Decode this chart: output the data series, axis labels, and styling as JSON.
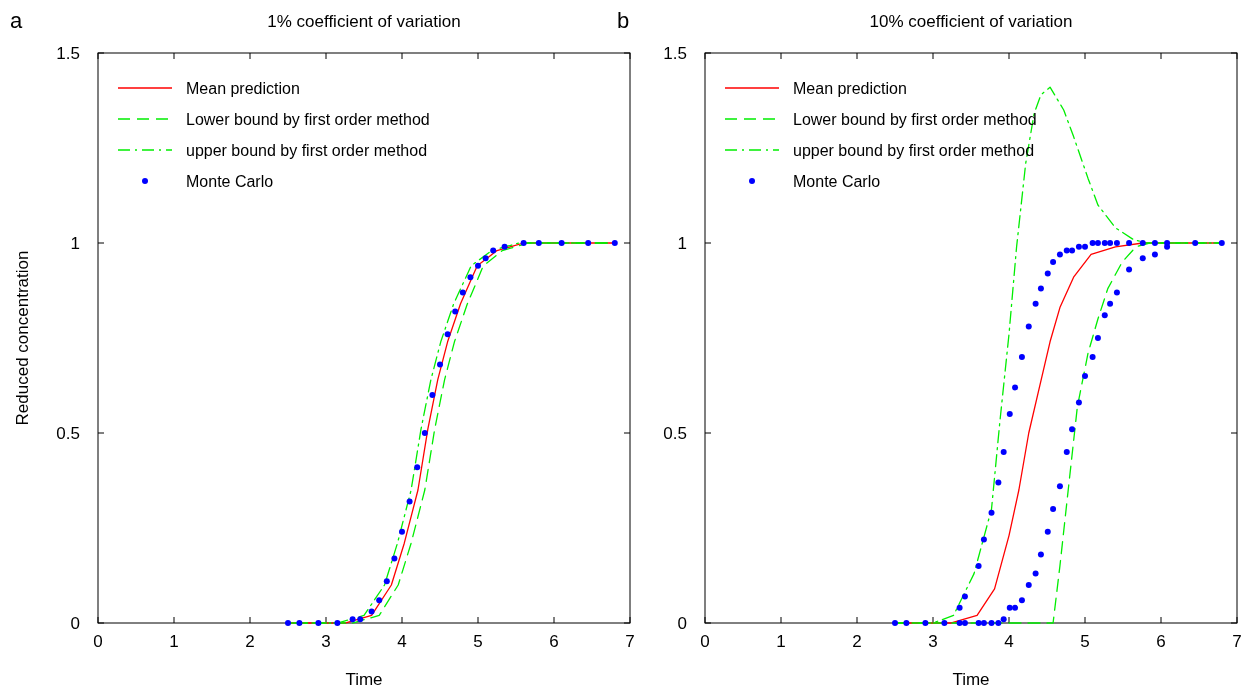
{
  "chart_data": [
    {
      "type": "line",
      "title": "1% coefficient of variation",
      "xlabel": "Time",
      "ylabel": "Reduced concentration",
      "annotations": [
        "a"
      ],
      "xlim": [
        0,
        7
      ],
      "ylim": [
        0,
        1.5
      ],
      "xticks": [
        0,
        1,
        2,
        3,
        4,
        5,
        6,
        7
      ],
      "yticks": [
        0,
        0.5,
        1,
        1.5
      ],
      "legend": "top left",
      "series": [
        {
          "name": "Mean prediction",
          "color": "#ff0000",
          "line_style": "solid",
          "x": [
            2.5,
            3.25,
            3.6,
            3.86,
            4.03,
            4.21,
            4.34,
            4.47,
            4.6,
            4.77,
            4.99,
            5.25,
            5.6,
            6.0,
            6.8
          ],
          "values": [
            0,
            0,
            0.02,
            0.1,
            0.21,
            0.35,
            0.51,
            0.64,
            0.74,
            0.84,
            0.94,
            0.98,
            1.0,
            1.0,
            1.0
          ]
        },
        {
          "name": "Lower bound by first order method",
          "color": "#00ee00",
          "line_style": "dashed",
          "x": [
            2.6,
            3.35,
            3.7,
            3.95,
            4.12,
            4.3,
            4.43,
            4.56,
            4.69,
            4.86,
            5.07,
            5.32,
            5.66,
            6.0,
            6.8
          ],
          "values": [
            0,
            0,
            0.02,
            0.1,
            0.21,
            0.35,
            0.51,
            0.64,
            0.74,
            0.84,
            0.94,
            0.98,
            1.0,
            1.0,
            1.0
          ]
        },
        {
          "name": "upper bound by first order method",
          "color": "#00ee00",
          "line_style": "dashdot",
          "x": [
            2.5,
            3.15,
            3.5,
            3.77,
            3.94,
            4.12,
            4.25,
            4.38,
            4.51,
            4.68,
            4.91,
            5.18,
            5.54,
            6.0,
            6.7
          ],
          "values": [
            0,
            0,
            0.02,
            0.1,
            0.21,
            0.35,
            0.51,
            0.64,
            0.74,
            0.84,
            0.94,
            0.98,
            1.0,
            1.0,
            1.0
          ]
        },
        {
          "name": "Monte Carlo",
          "type": "scatter",
          "marker": "circle",
          "color": "#0000ff",
          "x": [
            2.5,
            2.65,
            2.9,
            3.15,
            3.35,
            3.45,
            3.6,
            3.7,
            3.8,
            3.9,
            4.0,
            4.1,
            4.2,
            4.3,
            4.4,
            4.5,
            4.6,
            4.7,
            4.8,
            4.9,
            5.0,
            5.1,
            5.2,
            5.35,
            5.6,
            5.8,
            6.1,
            6.45,
            6.8
          ],
          "values": [
            0,
            0,
            0,
            0,
            0.01,
            0.01,
            0.03,
            0.06,
            0.11,
            0.17,
            0.24,
            0.32,
            0.41,
            0.5,
            0.6,
            0.68,
            0.76,
            0.82,
            0.87,
            0.91,
            0.94,
            0.96,
            0.98,
            0.99,
            1.0,
            1.0,
            1.0,
            1.0,
            1.0
          ]
        }
      ]
    },
    {
      "type": "line",
      "title": "10% coefficient of variation",
      "xlabel": "Time",
      "annotations": [
        "b"
      ],
      "xlim": [
        0,
        7
      ],
      "ylim": [
        0,
        1.5
      ],
      "xticks": [
        0,
        1,
        2,
        3,
        4,
        5,
        6,
        7
      ],
      "yticks": [
        0,
        0.5,
        1,
        1.5
      ],
      "legend": "top left",
      "series": [
        {
          "name": "Mean prediction",
          "color": "#ff0000",
          "line_style": "solid",
          "x": [
            2.5,
            3.23,
            3.58,
            3.81,
            4.0,
            4.13,
            4.26,
            4.4,
            4.54,
            4.67,
            4.85,
            5.08,
            5.4,
            5.76,
            6.8
          ],
          "values": [
            0,
            0,
            0.02,
            0.09,
            0.23,
            0.35,
            0.5,
            0.62,
            0.74,
            0.83,
            0.91,
            0.97,
            0.99,
            1.0,
            1.0
          ]
        },
        {
          "name": "Lower bound by first order method",
          "color": "#00ee00",
          "line_style": "dashed",
          "x": [
            2.5,
            4.58,
            4.67,
            4.79,
            4.9,
            5.04,
            5.17,
            5.3,
            5.49,
            5.67,
            5.85,
            6.8
          ],
          "values": [
            0,
            0,
            0.15,
            0.37,
            0.57,
            0.71,
            0.8,
            0.88,
            0.95,
            0.99,
            1.0,
            1.0
          ]
        },
        {
          "name": "upper bound by first order method",
          "color": "#00ee00",
          "line_style": "dashdot",
          "x": [
            2.5,
            3.0,
            3.27,
            3.54,
            3.77,
            3.88,
            4.0,
            4.1,
            4.22,
            4.33,
            4.42,
            4.54,
            4.72,
            4.85,
            5.04,
            5.17,
            5.4,
            5.63,
            5.8,
            6.8
          ],
          "values": [
            0,
            0,
            0.02,
            0.13,
            0.3,
            0.53,
            0.76,
            0.99,
            1.21,
            1.34,
            1.39,
            1.41,
            1.35,
            1.28,
            1.17,
            1.1,
            1.04,
            1.01,
            1.0,
            1.0
          ]
        },
        {
          "name": "Monte Carlo",
          "type": "scatter",
          "marker": "circle",
          "color": "#0000ff",
          "x": [
            2.5,
            2.65,
            2.9,
            3.15,
            3.35,
            3.35,
            3.42,
            3.42,
            3.6,
            3.6,
            3.67,
            3.67,
            3.77,
            3.77,
            3.86,
            3.86,
            3.93,
            3.93,
            4.01,
            4.01,
            4.08,
            4.08,
            4.17,
            4.17,
            4.26,
            4.26,
            4.35,
            4.35,
            4.42,
            4.42,
            4.51,
            4.51,
            4.58,
            4.58,
            4.67,
            4.67,
            4.76,
            4.76,
            4.83,
            4.83,
            4.92,
            4.92,
            5.0,
            5.0,
            5.1,
            5.1,
            5.17,
            5.17,
            5.26,
            5.26,
            5.33,
            5.33,
            5.42,
            5.42,
            5.58,
            5.58,
            5.76,
            5.76,
            5.92,
            5.92,
            6.08,
            6.08,
            6.45,
            6.8
          ],
          "values": [
            0,
            0,
            0,
            0,
            0,
            0.04,
            0,
            0.07,
            0,
            0.15,
            0,
            0.22,
            0,
            0.29,
            0,
            0.37,
            0.01,
            0.45,
            0.04,
            0.55,
            0.04,
            0.62,
            0.06,
            0.7,
            0.1,
            0.78,
            0.13,
            0.84,
            0.18,
            0.88,
            0.24,
            0.92,
            0.3,
            0.95,
            0.36,
            0.97,
            0.45,
            0.98,
            0.51,
            0.98,
            0.58,
            0.99,
            0.65,
            0.99,
            0.7,
            1.0,
            0.75,
            1.0,
            0.81,
            1.0,
            0.84,
            1.0,
            0.87,
            1.0,
            0.93,
            1.0,
            0.96,
            1.0,
            0.97,
            1.0,
            0.99,
            1.0,
            1.0,
            1.0
          ]
        }
      ]
    }
  ]
}
